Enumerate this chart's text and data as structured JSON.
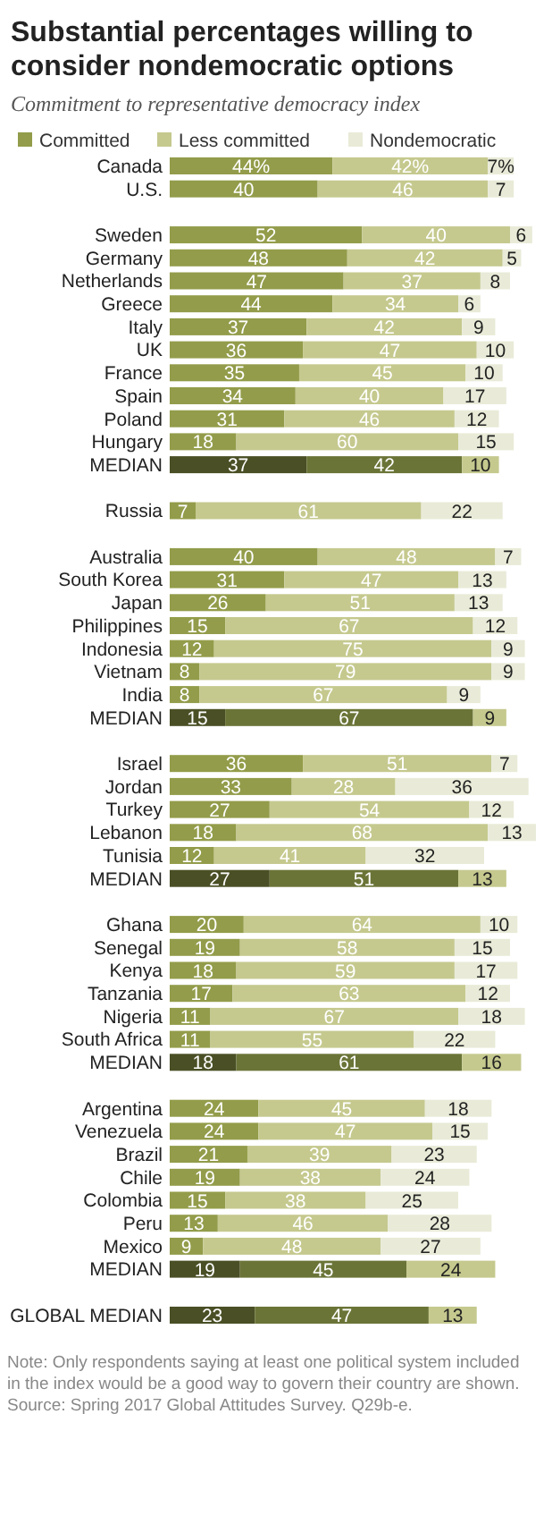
{
  "chart_data": {
    "type": "bar",
    "orientation": "horizontal",
    "stacked": true,
    "title": "Substantial percentages willing to consider nondemocratic options",
    "subtitle": "Commitment to representative democracy index",
    "legend": "top",
    "categories": [
      "Canada",
      "U.S.",
      null,
      "Sweden",
      "Germany",
      "Netherlands",
      "Greece",
      "Italy",
      "UK",
      "France",
      "Spain",
      "Poland",
      "Hungary",
      "MEDIAN",
      null,
      "Russia",
      null,
      "Australia",
      "South Korea",
      "Japan",
      "Philippines",
      "Indonesia",
      "Vietnam",
      "India",
      "MEDIAN",
      null,
      "Israel",
      "Jordan",
      "Turkey",
      "Lebanon",
      "Tunisia",
      "MEDIAN",
      null,
      "Ghana",
      "Senegal",
      "Kenya",
      "Tanzania",
      "Nigeria",
      "South Africa",
      "MEDIAN",
      null,
      "Argentina",
      "Venezuela",
      "Brazil",
      "Chile",
      "Colombia",
      "Peru",
      "Mexico",
      "MEDIAN",
      null,
      "GLOBAL MEDIAN"
    ],
    "series": [
      {
        "name": "Committed",
        "color": "#939c4a",
        "values": [
          44,
          40,
          null,
          52,
          48,
          47,
          44,
          37,
          36,
          35,
          34,
          31,
          18,
          37,
          null,
          7,
          null,
          40,
          31,
          26,
          15,
          12,
          8,
          8,
          15,
          null,
          36,
          33,
          27,
          18,
          12,
          27,
          null,
          20,
          19,
          18,
          17,
          11,
          11,
          18,
          null,
          24,
          24,
          21,
          19,
          15,
          13,
          9,
          19,
          null,
          23
        ],
        "colors": [
          "#939c4a",
          "#939c4a",
          null,
          "#939c4a",
          "#939c4a",
          "#939c4a",
          "#939c4a",
          "#939c4a",
          "#939c4a",
          "#939c4a",
          "#939c4a",
          "#939c4a",
          "#939c4a",
          "#4a4f25",
          null,
          "#939c4a",
          null,
          "#939c4a",
          "#939c4a",
          "#939c4a",
          "#939c4a",
          "#939c4a",
          "#939c4a",
          "#939c4a",
          "#4a4f25",
          null,
          "#939c4a",
          "#939c4a",
          "#939c4a",
          "#939c4a",
          "#939c4a",
          "#4a4f25",
          null,
          "#939c4a",
          "#939c4a",
          "#939c4a",
          "#939c4a",
          "#939c4a",
          "#939c4a",
          "#4a4f25",
          null,
          "#939c4a",
          "#939c4a",
          "#939c4a",
          "#939c4a",
          "#939c4a",
          "#939c4a",
          "#939c4a",
          "#4a4f25",
          null,
          "#4a4f25"
        ],
        "value_labels": [
          "44%",
          "40",
          null,
          "52",
          "48",
          "47",
          "44",
          "37",
          "36",
          "35",
          "34",
          "31",
          "18",
          "37",
          null,
          "7",
          null,
          "40",
          "31",
          "26",
          "15",
          "12",
          "8",
          "8",
          "15",
          null,
          "36",
          "33",
          "27",
          "18",
          "12",
          "27",
          null,
          "20",
          "19",
          "18",
          "17",
          "11",
          "11",
          "18",
          null,
          "24",
          "24",
          "21",
          "19",
          "15",
          "13",
          "9",
          "19",
          null,
          "23"
        ]
      },
      {
        "name": "Less committed",
        "color": "#c5c98e",
        "values": [
          42,
          46,
          null,
          40,
          42,
          37,
          34,
          42,
          47,
          45,
          40,
          46,
          60,
          42,
          null,
          61,
          null,
          48,
          47,
          51,
          67,
          75,
          79,
          67,
          67,
          null,
          51,
          28,
          54,
          68,
          41,
          51,
          null,
          64,
          58,
          59,
          63,
          67,
          55,
          61,
          null,
          45,
          47,
          39,
          38,
          38,
          46,
          48,
          45,
          null,
          47
        ],
        "colors": [
          "#c5c98e",
          "#c5c98e",
          null,
          "#c5c98e",
          "#c5c98e",
          "#c5c98e",
          "#c5c98e",
          "#c5c98e",
          "#c5c98e",
          "#c5c98e",
          "#c5c98e",
          "#c5c98e",
          "#c5c98e",
          "#6b7437",
          null,
          "#c5c98e",
          null,
          "#c5c98e",
          "#c5c98e",
          "#c5c98e",
          "#c5c98e",
          "#c5c98e",
          "#c5c98e",
          "#c5c98e",
          "#6b7437",
          null,
          "#c5c98e",
          "#c5c98e",
          "#c5c98e",
          "#c5c98e",
          "#c5c98e",
          "#6b7437",
          null,
          "#c5c98e",
          "#c5c98e",
          "#c5c98e",
          "#c5c98e",
          "#c5c98e",
          "#c5c98e",
          "#6b7437",
          null,
          "#c5c98e",
          "#c5c98e",
          "#c5c98e",
          "#c5c98e",
          "#c5c98e",
          "#c5c98e",
          "#c5c98e",
          "#6b7437",
          null,
          "#6b7437"
        ],
        "value_labels": [
          "42%",
          "46",
          null,
          "40",
          "42",
          "37",
          "34",
          "42",
          "47",
          "45",
          "40",
          "46",
          "60",
          "42",
          null,
          "61",
          null,
          "48",
          "47",
          "51",
          "67",
          "75",
          "79",
          "67",
          "67",
          null,
          "51",
          "28",
          "54",
          "68",
          "41",
          "51",
          null,
          "64",
          "58",
          "59",
          "63",
          "67",
          "55",
          "61",
          null,
          "45",
          "47",
          "39",
          "38",
          "38",
          "46",
          "48",
          "45",
          null,
          "47"
        ]
      },
      {
        "name": "Nondemocratic",
        "color": "#e9ebd8",
        "values": [
          7,
          7,
          null,
          6,
          5,
          8,
          6,
          9,
          10,
          10,
          17,
          12,
          15,
          10,
          null,
          22,
          null,
          7,
          13,
          13,
          12,
          9,
          9,
          9,
          9,
          null,
          7,
          36,
          12,
          13,
          32,
          13,
          null,
          10,
          15,
          17,
          12,
          18,
          22,
          16,
          null,
          18,
          15,
          23,
          24,
          25,
          28,
          27,
          24,
          null,
          13
        ],
        "colors": [
          "#e9ebd8",
          "#e9ebd8",
          null,
          "#e9ebd8",
          "#e9ebd8",
          "#e9ebd8",
          "#e9ebd8",
          "#e9ebd8",
          "#e9ebd8",
          "#e9ebd8",
          "#e9ebd8",
          "#e9ebd8",
          "#e9ebd8",
          "#c5c98e",
          null,
          "#e9ebd8",
          null,
          "#e9ebd8",
          "#e9ebd8",
          "#e9ebd8",
          "#e9ebd8",
          "#e9ebd8",
          "#e9ebd8",
          "#e9ebd8",
          "#c5c98e",
          null,
          "#e9ebd8",
          "#e9ebd8",
          "#e9ebd8",
          "#e9ebd8",
          "#e9ebd8",
          "#c5c98e",
          null,
          "#e9ebd8",
          "#e9ebd8",
          "#e9ebd8",
          "#e9ebd8",
          "#e9ebd8",
          "#e9ebd8",
          "#c5c98e",
          null,
          "#e9ebd8",
          "#e9ebd8",
          "#e9ebd8",
          "#e9ebd8",
          "#e9ebd8",
          "#e9ebd8",
          "#e9ebd8",
          "#c5c98e",
          null,
          "#c5c98e"
        ],
        "value_labels": [
          "7%",
          "7",
          null,
          "6",
          "5",
          "8",
          "6",
          "9",
          "10",
          "10",
          "17",
          "12",
          "15",
          "10",
          null,
          "22",
          null,
          "7",
          "13",
          "13",
          "12",
          "9",
          "9",
          "9",
          "9",
          null,
          "7",
          "36",
          "12",
          "13",
          "32",
          "13",
          null,
          "10",
          "15",
          "17",
          "12",
          "18",
          "22",
          "16",
          null,
          "18",
          "15",
          "23",
          "24",
          "25",
          "28",
          "27",
          "24",
          null,
          "13"
        ]
      }
    ],
    "annotations": [
      "Note: Only respondents saying at least one political system included in the index would be a good way to govern their country are shown.",
      "Source: Spring 2017 Global Attitudes Survey. Q29b-e."
    ]
  }
}
